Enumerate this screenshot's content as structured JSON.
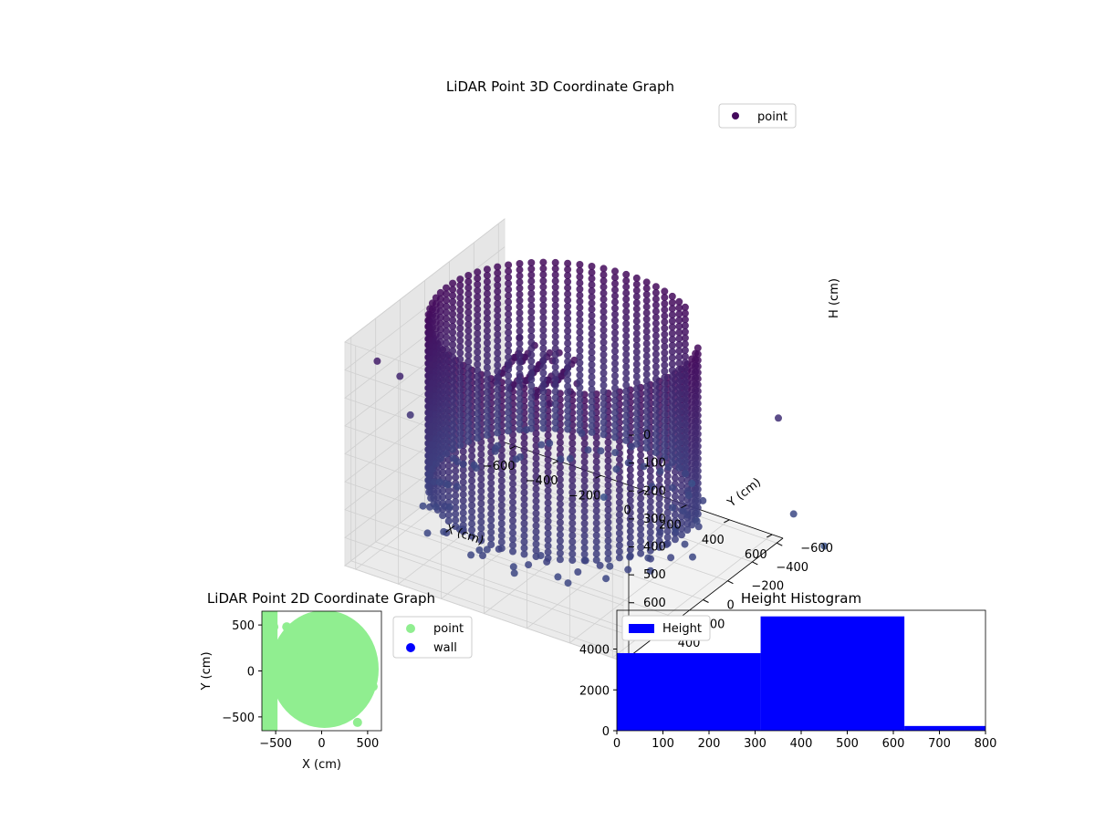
{
  "chart_data": [
    {
      "type": "scatter3d",
      "title": "LiDAR Point 3D Coordinate Graph",
      "xlabel": "X (cm)",
      "ylabel": "Y (cm)",
      "zlabel": "H (cm)",
      "xlim": [
        -650,
        650
      ],
      "ylim": [
        -650,
        650
      ],
      "zlim": [
        0,
        800
      ],
      "z_inverted": true,
      "xticks": [
        "−600",
        "−400",
        "−200",
        "0",
        "200",
        "400",
        "600"
      ],
      "yticks": [
        "−600",
        "−400",
        "−200",
        "0",
        "200",
        "400",
        "600"
      ],
      "zticks": [
        "0",
        "100",
        "200",
        "300",
        "400",
        "500",
        "600",
        "700",
        "800"
      ],
      "legend": [
        "point"
      ],
      "legend_position": "top-right",
      "grid": true,
      "series": [
        {
          "name": "point",
          "description": "ring of LiDAR returns at radius ~550 cm spanning H 0-600 cm, with scattered outliers",
          "ring_radius": 550,
          "h_range": [
            0,
            600
          ],
          "outliers": [
            [
              -700,
              300,
              200
            ],
            [
              -680,
              150,
              300
            ],
            [
              -660,
              100,
              450
            ],
            [
              700,
              -650,
              700
            ],
            [
              600,
              -700,
              400
            ],
            [
              -100,
              -500,
              800
            ],
            [
              150,
              -780,
              780
            ],
            [
              700,
              -900,
              900
            ]
          ]
        }
      ],
      "colors": {
        "top": "#440a5c",
        "bottom": "#3b528b"
      }
    },
    {
      "type": "scatter",
      "title": "LiDAR Point 2D Coordinate Graph",
      "xlabel": "X (cm)",
      "ylabel": "Y (cm)",
      "xlim": [
        -650,
        650
      ],
      "ylim": [
        -650,
        650
      ],
      "xticks": [
        "−500",
        "0",
        "500"
      ],
      "yticks": [
        "500",
        "0",
        "−500"
      ],
      "legend": [
        "point",
        "wall"
      ],
      "legend_position": "outside-right",
      "colors": {
        "point": "#90ee90",
        "wall": "#0000ff"
      },
      "series": [
        {
          "name": "point",
          "description": "dense disk of points (radius ~600) with scattered points on left edge"
        },
        {
          "name": "wall",
          "values": []
        }
      ]
    },
    {
      "type": "bar",
      "title": "Height Histogram",
      "xlim": [
        0,
        800
      ],
      "ylim": [
        0,
        5900
      ],
      "xticks": [
        "0",
        "100",
        "200",
        "300",
        "400",
        "500",
        "600",
        "700",
        "800"
      ],
      "yticks": [
        "0",
        "2000",
        "4000"
      ],
      "legend": [
        "Height"
      ],
      "legend_position": "top-left",
      "color": "#0000ff",
      "bins": [
        {
          "x0": 0,
          "x1": 312,
          "count": 3800
        },
        {
          "x0": 312,
          "x1": 624,
          "count": 5600
        },
        {
          "x0": 624,
          "x1": 800,
          "count": 230
        }
      ]
    }
  ]
}
